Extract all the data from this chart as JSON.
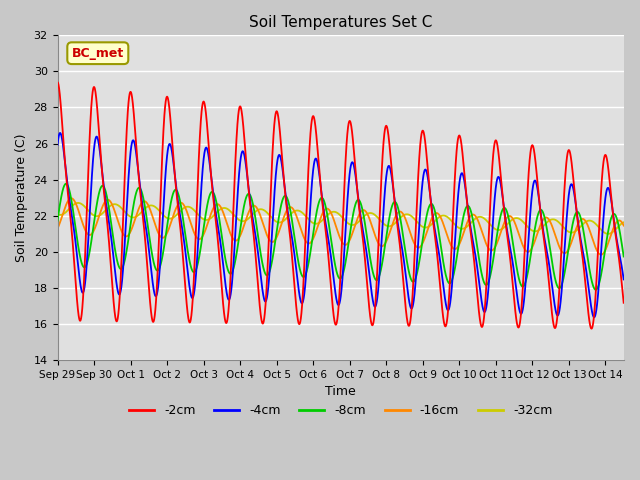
{
  "title": "Soil Temperatures Set C",
  "xlabel": "Time",
  "ylabel": "Soil Temperature (C)",
  "ylim": [
    14,
    32
  ],
  "yticks": [
    14,
    16,
    18,
    20,
    22,
    24,
    26,
    28,
    30,
    32
  ],
  "plot_bg_color": "#e0e0e0",
  "fig_bg_color": "#c8c8c8",
  "grid_color": "#ffffff",
  "label_box_text": "BC_met",
  "label_box_facecolor": "#ffffcc",
  "label_box_edgecolor": "#999900",
  "label_box_textcolor": "#cc0000",
  "line_colors": {
    "-2cm": "#ff0000",
    "-4cm": "#0000ff",
    "-8cm": "#00cc00",
    "-16cm": "#ff8800",
    "-32cm": "#cccc00"
  },
  "legend_labels": [
    "-2cm",
    "-4cm",
    "-8cm",
    "-16cm",
    "-32cm"
  ],
  "x_tick_labels": [
    "Sep 29",
    "Sep 30",
    "Oct 1",
    "Oct 2",
    "Oct 3",
    "Oct 4",
    "Oct 5",
    "Oct 6",
    "Oct 7",
    "Oct 8",
    "Oct 9",
    "Oct 10",
    "Oct 11",
    "Oct 12",
    "Oct 13",
    "Oct 14"
  ],
  "n_days": 15.5,
  "lw": 1.3
}
